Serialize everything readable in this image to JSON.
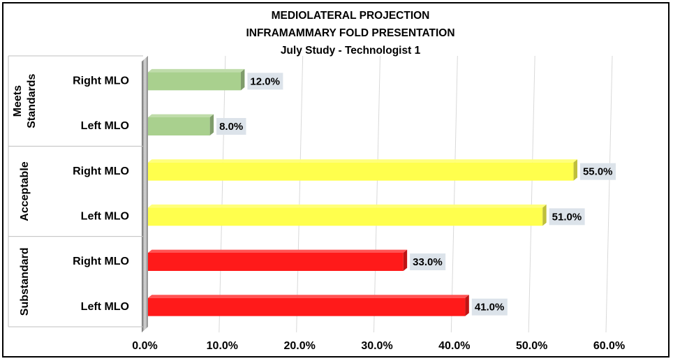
{
  "chart_data": {
    "type": "bar",
    "orientation": "horizontal",
    "title": [
      "MEDIOLATERAL PROJECTION",
      "INFRAMAMMARY FOLD PRESENTATION",
      "July Study - Technologist 1"
    ],
    "xlim": [
      0,
      60
    ],
    "xticks": [
      "0.0%",
      "10.0%",
      "20.0%",
      "30.0%",
      "40.0%",
      "50.0%",
      "60.0%"
    ],
    "grid": true,
    "legend": "none",
    "groups": [
      {
        "name": "Meets Standards",
        "name_lines": [
          "Meets",
          "Standards"
        ],
        "color": "#a9d08e",
        "bars": [
          {
            "category": "Right MLO",
            "value": 12.0,
            "label": "12.0%"
          },
          {
            "category": "Left MLO",
            "value": 8.0,
            "label": "8.0%"
          }
        ]
      },
      {
        "name": "Acceptable",
        "name_lines": [
          "Acceptable"
        ],
        "color": "#ffff4d",
        "bars": [
          {
            "category": "Right MLO",
            "value": 55.0,
            "label": "55.0%"
          },
          {
            "category": "Left MLO",
            "value": 51.0,
            "label": "51.0%"
          }
        ]
      },
      {
        "name": "Substandard",
        "name_lines": [
          "Substandard"
        ],
        "color": "#ff1a1a",
        "bars": [
          {
            "category": "Right MLO",
            "value": 33.0,
            "label": "33.0%"
          },
          {
            "category": "Left MLO",
            "value": 41.0,
            "label": "41.0%"
          }
        ]
      }
    ]
  }
}
